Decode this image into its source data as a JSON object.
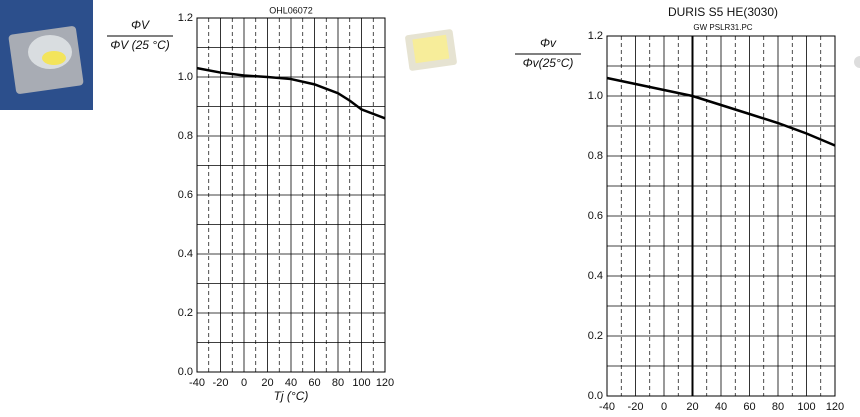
{
  "chart_data": [
    {
      "type": "line",
      "title": "OHL06072",
      "y_label_numerator": "ΦV",
      "y_label_denominator": "ΦV (25 °C)",
      "x_label": "Tj (°C)",
      "x": [
        -40,
        -20,
        0,
        20,
        40,
        60,
        80,
        90,
        100,
        120
      ],
      "values": [
        1.03,
        1.015,
        1.005,
        1.0,
        0.993,
        0.975,
        0.945,
        0.92,
        0.89,
        0.86
      ],
      "color": "#000000",
      "xlim": [
        -40,
        120
      ],
      "xticks": [
        -40,
        -20,
        0,
        20,
        40,
        60,
        80,
        100,
        120
      ],
      "ylim": [
        0,
        1.2
      ],
      "yticks": [
        {
          "value": 0,
          "label": "0.0"
        },
        {
          "value": 0.2,
          "label": "0.2"
        },
        {
          "value": 0.4,
          "label": "0.4"
        },
        {
          "value": 0.6,
          "label": "0.6"
        },
        {
          "value": 0.8,
          "label": "0.8"
        },
        {
          "value": 1,
          "label": "1.0"
        },
        {
          "value": 1.2,
          "label": "1.2"
        }
      ],
      "grid": true
    },
    {
      "type": "line",
      "title": "DURIS S5 HE(3030)",
      "subtitle": "GW PSLR31.PC",
      "y_label_numerator": "Φv",
      "y_label_denominator": "Φv(25°C)",
      "x": [
        -40,
        -20,
        0,
        20,
        40,
        60,
        80,
        100,
        120
      ],
      "values": [
        1.06,
        1.04,
        1.02,
        1.0,
        0.97,
        0.94,
        0.91,
        0.875,
        0.835
      ],
      "color": "#000000",
      "xlim": [
        -40,
        120
      ],
      "xticks": [
        -40,
        -20,
        0,
        20,
        40,
        60,
        80,
        100,
        120
      ],
      "ylim": [
        0,
        1.2
      ],
      "yticks": [
        {
          "value": 0,
          "label": "0.0"
        },
        {
          "value": 0.2,
          "label": "0.2"
        },
        {
          "value": 0.4,
          "label": "0.4"
        },
        {
          "value": 0.6,
          "label": "0.6"
        },
        {
          "value": 0.8,
          "label": "0.8"
        },
        {
          "value": 1,
          "label": "1.0"
        },
        {
          "value": 1.2,
          "label": "1.2"
        }
      ],
      "grid": true,
      "reference_line_x": 20
    }
  ]
}
